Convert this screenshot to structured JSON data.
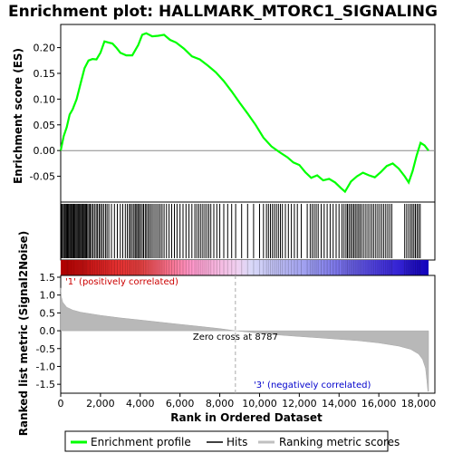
{
  "chart_data": {
    "type": "line",
    "title": "Enrichment plot: HALLMARK_MTORC1_SIGNALING",
    "top_panel": {
      "ylabel": "Enrichment score (ES)",
      "ylim": [
        -0.1,
        0.245
      ],
      "yticks": [
        -0.05,
        0.0,
        0.05,
        0.1,
        0.15,
        0.2
      ],
      "ytick_labels": [
        "-0.05",
        "0.00",
        "0.05",
        "0.10",
        "0.15",
        "0.20"
      ],
      "series_color": "#00ff00",
      "es_curve": [
        [
          0,
          0.0
        ],
        [
          150,
          0.028
        ],
        [
          300,
          0.045
        ],
        [
          450,
          0.07
        ],
        [
          600,
          0.08
        ],
        [
          800,
          0.1
        ],
        [
          1000,
          0.13
        ],
        [
          1200,
          0.16
        ],
        [
          1400,
          0.175
        ],
        [
          1600,
          0.178
        ],
        [
          1800,
          0.177
        ],
        [
          2000,
          0.19
        ],
        [
          2200,
          0.212
        ],
        [
          2400,
          0.21
        ],
        [
          2600,
          0.208
        ],
        [
          2800,
          0.2
        ],
        [
          3000,
          0.19
        ],
        [
          3300,
          0.185
        ],
        [
          3600,
          0.185
        ],
        [
          3900,
          0.205
        ],
        [
          4100,
          0.225
        ],
        [
          4300,
          0.228
        ],
        [
          4600,
          0.222
        ],
        [
          4900,
          0.223
        ],
        [
          5200,
          0.225
        ],
        [
          5500,
          0.215
        ],
        [
          5800,
          0.21
        ],
        [
          6200,
          0.198
        ],
        [
          6600,
          0.183
        ],
        [
          7000,
          0.177
        ],
        [
          7400,
          0.165
        ],
        [
          7800,
          0.152
        ],
        [
          8200,
          0.135
        ],
        [
          8600,
          0.115
        ],
        [
          9000,
          0.093
        ],
        [
          9400,
          0.072
        ],
        [
          9800,
          0.05
        ],
        [
          10200,
          0.025
        ],
        [
          10600,
          0.008
        ],
        [
          11000,
          -0.003
        ],
        [
          11400,
          -0.013
        ],
        [
          11700,
          -0.023
        ],
        [
          12000,
          -0.028
        ],
        [
          12300,
          -0.042
        ],
        [
          12600,
          -0.053
        ],
        [
          12900,
          -0.048
        ],
        [
          13200,
          -0.058
        ],
        [
          13500,
          -0.055
        ],
        [
          13800,
          -0.062
        ],
        [
          14100,
          -0.073
        ],
        [
          14300,
          -0.08
        ],
        [
          14600,
          -0.06
        ],
        [
          14900,
          -0.05
        ],
        [
          15200,
          -0.043
        ],
        [
          15500,
          -0.048
        ],
        [
          15800,
          -0.052
        ],
        [
          16100,
          -0.042
        ],
        [
          16400,
          -0.03
        ],
        [
          16700,
          -0.025
        ],
        [
          17000,
          -0.035
        ],
        [
          17300,
          -0.05
        ],
        [
          17500,
          -0.062
        ],
        [
          17700,
          -0.04
        ],
        [
          17900,
          -0.01
        ],
        [
          18100,
          0.015
        ],
        [
          18300,
          0.01
        ],
        [
          18500,
          0.0
        ]
      ]
    },
    "hits": [
      40,
      90,
      150,
      210,
      260,
      300,
      340,
      380,
      420,
      470,
      520,
      560,
      610,
      660,
      700,
      760,
      810,
      860,
      910,
      960,
      1010,
      1060,
      1110,
      1150,
      1200,
      1250,
      1300,
      1360,
      1420,
      1480,
      1550,
      1620,
      1700,
      1780,
      1850,
      1930,
      2000,
      2080,
      2160,
      2250,
      2330,
      2420,
      2550,
      2700,
      2850,
      3000,
      3120,
      3250,
      3350,
      3450,
      3520,
      3600,
      3680,
      3750,
      3820,
      3880,
      3950,
      4020,
      4100,
      4170,
      4250,
      4320,
      4400,
      4480,
      4560,
      4650,
      4740,
      4830,
      4920,
      5010,
      5100,
      5200,
      5320,
      5450,
      5580,
      5720,
      5850,
      6000,
      6150,
      6300,
      6450,
      6600,
      6750,
      6850,
      6950,
      7050,
      7150,
      7250,
      7350,
      7450,
      7550,
      7700,
      7850,
      8000,
      8200,
      8400,
      8600,
      8800,
      9100,
      9400,
      9700,
      10000,
      10200,
      10350,
      10450,
      10550,
      10650,
      10750,
      10850,
      10950,
      11050,
      11150,
      11300,
      11450,
      11600,
      11750,
      11900,
      12100,
      12400,
      12550,
      12650,
      12750,
      12850,
      12950,
      13100,
      13250,
      13400,
      13550,
      13700,
      13850,
      14000,
      14150,
      14250,
      14350,
      14420,
      14500,
      14580,
      14660,
      14740,
      14820,
      14900,
      14980,
      15060,
      15150,
      15250,
      15350,
      15450,
      15550,
      15650,
      15750,
      15850,
      15950,
      16050,
      16150,
      16250,
      16350,
      16450,
      16550,
      16650,
      17300,
      17400,
      17500,
      17600,
      17680,
      17760,
      17840,
      17920,
      18000,
      18080
    ],
    "bottom_panel": {
      "ylabel": "Ranked list metric (Signal2Noise)",
      "xlabel": "Rank in Ordered Dataset",
      "ylim": [
        -1.75,
        1.55
      ],
      "yticks": [
        -1.5,
        -1.0,
        -0.5,
        0.0,
        0.5,
        1.0,
        1.5
      ],
      "ytick_labels": [
        "-1.5",
        "-1.0",
        "-0.5",
        "0.0",
        "0.5",
        "1.0",
        "1.5"
      ],
      "xticks": [
        0,
        2000,
        4000,
        6000,
        8000,
        10000,
        12000,
        14000,
        16000,
        18000
      ],
      "xtick_labels": [
        "0",
        "2,000",
        "4,000",
        "6,000",
        "8,000",
        "10,000",
        "12,000",
        "14,000",
        "16,000",
        "18,000"
      ],
      "xlim": [
        0,
        18500
      ],
      "zero_cross": 8787,
      "zero_cross_label": "Zero cross at 8787",
      "positive_label": "'1' (positively correlated)",
      "negative_label": "'3' (negatively correlated)",
      "metric_curve": [
        [
          0,
          1.2
        ],
        [
          30,
          0.95
        ],
        [
          100,
          0.8
        ],
        [
          300,
          0.66
        ],
        [
          600,
          0.58
        ],
        [
          1000,
          0.52
        ],
        [
          2000,
          0.43
        ],
        [
          3000,
          0.36
        ],
        [
          4000,
          0.3
        ],
        [
          5000,
          0.24
        ],
        [
          6000,
          0.18
        ],
        [
          7000,
          0.12
        ],
        [
          8000,
          0.06
        ],
        [
          8787,
          0.0
        ],
        [
          10000,
          -0.07
        ],
        [
          11000,
          -0.12
        ],
        [
          12000,
          -0.16
        ],
        [
          13000,
          -0.2
        ],
        [
          14000,
          -0.24
        ],
        [
          15000,
          -0.28
        ],
        [
          16000,
          -0.34
        ],
        [
          17000,
          -0.43
        ],
        [
          17600,
          -0.52
        ],
        [
          18000,
          -0.65
        ],
        [
          18200,
          -0.8
        ],
        [
          18350,
          -1.05
        ],
        [
          18420,
          -1.4
        ],
        [
          18470,
          -1.7
        ],
        [
          18500,
          -1.7
        ]
      ]
    },
    "legend": [
      {
        "label": "Enrichment profile",
        "color": "#00ff00"
      },
      {
        "label": "Hits",
        "color": "#000000"
      },
      {
        "label": "Ranking metric scores",
        "color": "#c0c0c0"
      }
    ]
  }
}
